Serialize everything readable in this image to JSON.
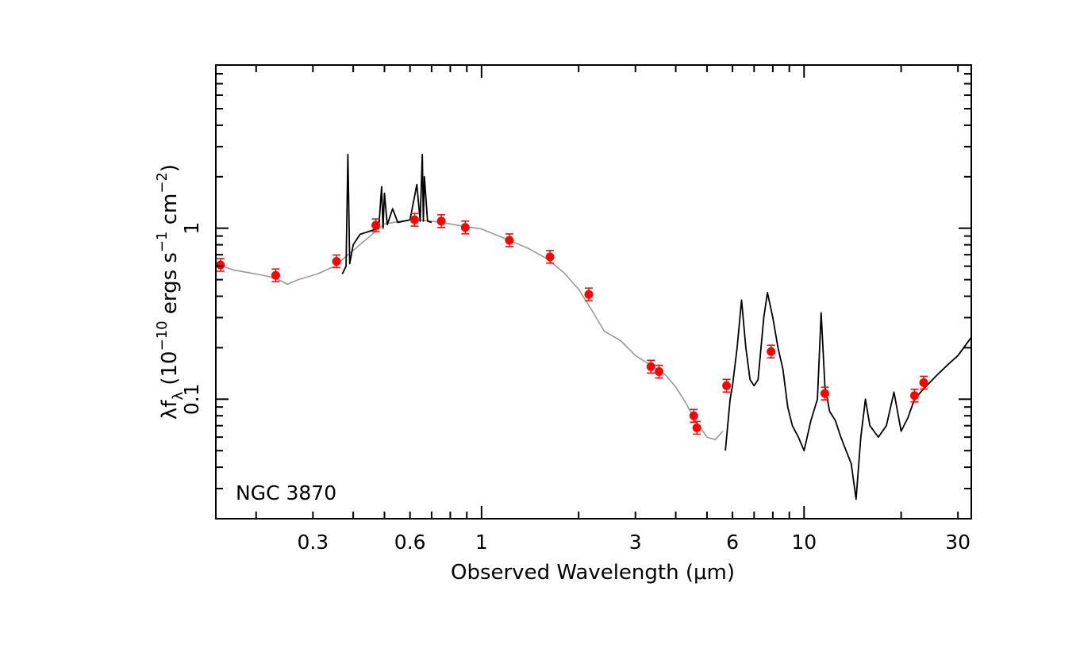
{
  "chart_data": {
    "type": "scatter",
    "annotation": "NGC 3870",
    "xlabel": "Observed Wavelength (μm)",
    "ylabel": {
      "base": "λf",
      "sub": "λ",
      "pre": " (10",
      "sup1": "−10",
      "mid": " ergs s",
      "sup2": "−1",
      "mid2": " cm",
      "sup3": "−2",
      "post": ")"
    },
    "x_scale": "log",
    "y_scale": "log",
    "xlim": [
      0.15,
      33
    ],
    "ylim": [
      0.02,
      9
    ],
    "xticks": [
      {
        "value": 0.3,
        "label": "0.3"
      },
      {
        "value": 0.6,
        "label": "0.6"
      },
      {
        "value": 1,
        "label": "1"
      },
      {
        "value": 3,
        "label": "3"
      },
      {
        "value": 6,
        "label": "6"
      },
      {
        "value": 10,
        "label": "10"
      },
      {
        "value": 30,
        "label": "30"
      }
    ],
    "yticks": [
      {
        "value": 0.1,
        "label": "0.1"
      },
      {
        "value": 1,
        "label": "1"
      }
    ],
    "colors": {
      "points": "#ff0000",
      "model": "#999999",
      "spectrum": "#000000",
      "axes": "#000000"
    },
    "series": [
      {
        "style": "gray-line",
        "x": [
          0.15,
          0.17,
          0.2,
          0.22,
          0.24,
          0.25,
          0.27,
          0.29,
          0.31,
          0.33,
          0.35,
          0.5,
          0.6,
          0.7,
          0.8,
          0.9,
          1.0,
          1.2,
          1.4,
          1.6,
          1.8,
          2.0,
          2.2,
          2.4,
          2.7,
          3.0,
          3.4,
          3.7,
          4.0,
          4.3,
          4.6,
          5.0,
          5.3,
          5.6
        ],
        "y": [
          0.62,
          0.57,
          0.54,
          0.52,
          0.49,
          0.47,
          0.5,
          0.52,
          0.54,
          0.57,
          0.6,
          1.06,
          1.12,
          1.1,
          1.06,
          1.02,
          0.99,
          0.86,
          0.76,
          0.66,
          0.55,
          0.44,
          0.33,
          0.25,
          0.22,
          0.18,
          0.155,
          0.14,
          0.118,
          0.095,
          0.075,
          0.06,
          0.058,
          0.065
        ]
      },
      {
        "style": "black-spectrum",
        "x": [
          0.37,
          0.38,
          0.385,
          0.39,
          0.4,
          0.42,
          0.45,
          0.48,
          0.49,
          0.495,
          0.5,
          0.51,
          0.53,
          0.55,
          0.6,
          0.63,
          0.645,
          0.655,
          0.66,
          0.665,
          0.68,
          0.7
        ],
        "y": [
          0.54,
          0.6,
          2.7,
          0.62,
          0.8,
          0.92,
          0.96,
          1.0,
          1.75,
          1.0,
          1.6,
          1.05,
          1.3,
          1.08,
          1.12,
          1.8,
          1.1,
          2.7,
          1.1,
          2.0,
          1.1,
          1.08
        ]
      },
      {
        "style": "black-spectrum",
        "x": [
          5.7,
          5.9,
          6.0,
          6.2,
          6.4,
          6.6,
          6.8,
          7.0,
          7.2,
          7.5,
          7.7,
          8.0,
          8.3,
          8.6,
          8.9,
          9.2,
          9.6,
          10.0,
          10.5,
          11.0,
          11.3,
          11.6,
          12.0,
          12.5,
          13.0,
          13.5,
          14.0,
          14.5,
          15.0,
          15.5,
          16.0,
          17.0,
          18.0,
          19.0,
          20.0,
          21.0,
          22.0,
          23.0,
          24.0,
          26.0,
          28.0,
          30.0,
          33.0
        ],
        "y": [
          0.05,
          0.1,
          0.12,
          0.2,
          0.38,
          0.2,
          0.13,
          0.12,
          0.13,
          0.3,
          0.42,
          0.3,
          0.2,
          0.15,
          0.09,
          0.07,
          0.06,
          0.05,
          0.075,
          0.1,
          0.32,
          0.12,
          0.085,
          0.075,
          0.06,
          0.05,
          0.042,
          0.026,
          0.06,
          0.1,
          0.07,
          0.06,
          0.07,
          0.11,
          0.065,
          0.078,
          0.1,
          0.11,
          0.12,
          0.14,
          0.16,
          0.18,
          0.23
        ]
      },
      {
        "style": "points",
        "x": [
          0.155,
          0.23,
          0.355,
          0.47,
          0.62,
          0.75,
          0.89,
          1.22,
          1.63,
          2.15,
          3.35,
          3.55,
          4.55,
          4.65,
          5.75,
          7.9,
          11.6,
          22.0,
          23.5
        ],
        "y": [
          0.61,
          0.53,
          0.64,
          1.04,
          1.12,
          1.1,
          1.01,
          0.85,
          0.68,
          0.41,
          0.155,
          0.145,
          0.08,
          0.068,
          0.12,
          0.19,
          0.108,
          0.105,
          0.125
        ]
      }
    ]
  }
}
